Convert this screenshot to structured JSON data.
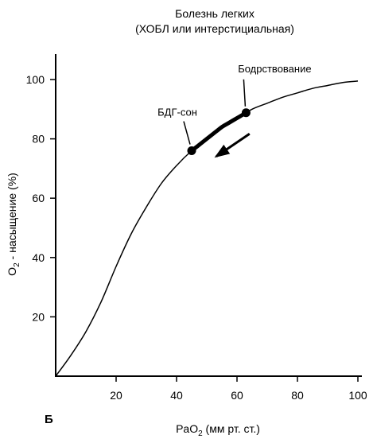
{
  "chart_data": {
    "type": "line",
    "title": [
      "Болезнь легких",
      "(ХОБЛ или интерстициальная)"
    ],
    "xlabel": {
      "main": "Pa",
      "sub": "2",
      "after_sub": " (мм рт. ст.)",
      "o": "O"
    },
    "ylabel": {
      "main": "O",
      "sub": "2",
      "rest": " - насыщение (%)"
    },
    "xlim": [
      0,
      100
    ],
    "ylim": [
      0,
      100
    ],
    "xticks": [
      20,
      40,
      60,
      80,
      100
    ],
    "yticks": [
      20,
      40,
      60,
      80,
      100
    ],
    "grid": false,
    "panel_label": "Б",
    "series": [
      {
        "x": [
          0,
          5,
          10,
          15,
          20,
          25,
          30,
          35,
          40,
          45,
          50,
          55,
          60,
          65,
          70,
          75,
          80,
          85,
          90,
          95,
          100
        ],
        "y": [
          0,
          7,
          15,
          25,
          37,
          48,
          57,
          65,
          71,
          76,
          80,
          84,
          87,
          90,
          92,
          94,
          95.5,
          97,
          98,
          99,
          99.5
        ]
      }
    ],
    "highlight_segment": {
      "x_start": 45,
      "x_end": 63
    },
    "points": [
      {
        "label": "БДГ-сон",
        "x": 45,
        "y": 76
      },
      {
        "label": "Бодрствование",
        "x": 63,
        "y": 88
      }
    ],
    "arrow": {
      "from_x": 61,
      "to_x": 50
    }
  }
}
